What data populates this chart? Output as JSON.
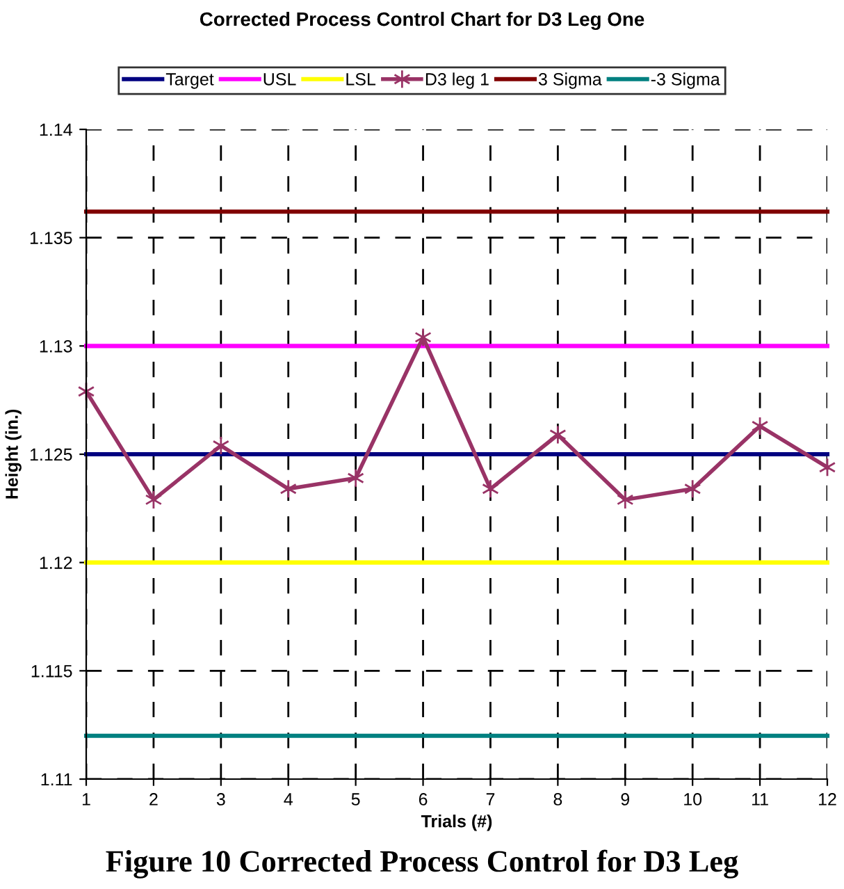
{
  "chart_data": {
    "type": "line",
    "title": "Corrected Process Control Chart for D3 Leg One",
    "xlabel": "Trials (#)",
    "ylabel": "Height (in.)",
    "x": [
      1,
      2,
      3,
      4,
      5,
      6,
      7,
      8,
      9,
      10,
      11,
      12
    ],
    "series": [
      {
        "name": "Target",
        "color": "#000080",
        "marker": "none",
        "values": [
          1.125,
          1.125,
          1.125,
          1.125,
          1.125,
          1.125,
          1.125,
          1.125,
          1.125,
          1.125,
          1.125,
          1.125
        ]
      },
      {
        "name": "USL",
        "color": "#ff00ff",
        "marker": "none",
        "values": [
          1.13,
          1.13,
          1.13,
          1.13,
          1.13,
          1.13,
          1.13,
          1.13,
          1.13,
          1.13,
          1.13,
          1.13
        ]
      },
      {
        "name": "LSL",
        "color": "#ffff00",
        "marker": "none",
        "values": [
          1.12,
          1.12,
          1.12,
          1.12,
          1.12,
          1.12,
          1.12,
          1.12,
          1.12,
          1.12,
          1.12,
          1.12
        ]
      },
      {
        "name": "D3 leg 1",
        "color": "#993366",
        "marker": "cross",
        "values": [
          1.1279,
          1.1229,
          1.1254,
          1.1234,
          1.1239,
          1.1304,
          1.1234,
          1.1259,
          1.1229,
          1.1234,
          1.1263,
          1.1244
        ]
      },
      {
        "name": "3 Sigma",
        "color": "#800000",
        "marker": "none",
        "values": [
          1.1362,
          1.1362,
          1.1362,
          1.1362,
          1.1362,
          1.1362,
          1.1362,
          1.1362,
          1.1362,
          1.1362,
          1.1362,
          1.1362
        ]
      },
      {
        "name": "-3 Sigma",
        "color": "#008080",
        "marker": "none",
        "values": [
          1.112,
          1.112,
          1.112,
          1.112,
          1.112,
          1.112,
          1.112,
          1.112,
          1.112,
          1.112,
          1.112,
          1.112
        ]
      }
    ],
    "xlim": [
      1,
      12
    ],
    "xticks": [
      1,
      2,
      3,
      4,
      5,
      6,
      7,
      8,
      9,
      10,
      11,
      12
    ],
    "ylim": [
      1.11,
      1.14
    ],
    "yticks": [
      1.11,
      1.115,
      1.12,
      1.125,
      1.13,
      1.135,
      1.14
    ],
    "grid": true,
    "legend": "top",
    "line_style": "solid",
    "annotations": [
      "Figure 10 Corrected Process Control for D3 Leg"
    ]
  }
}
